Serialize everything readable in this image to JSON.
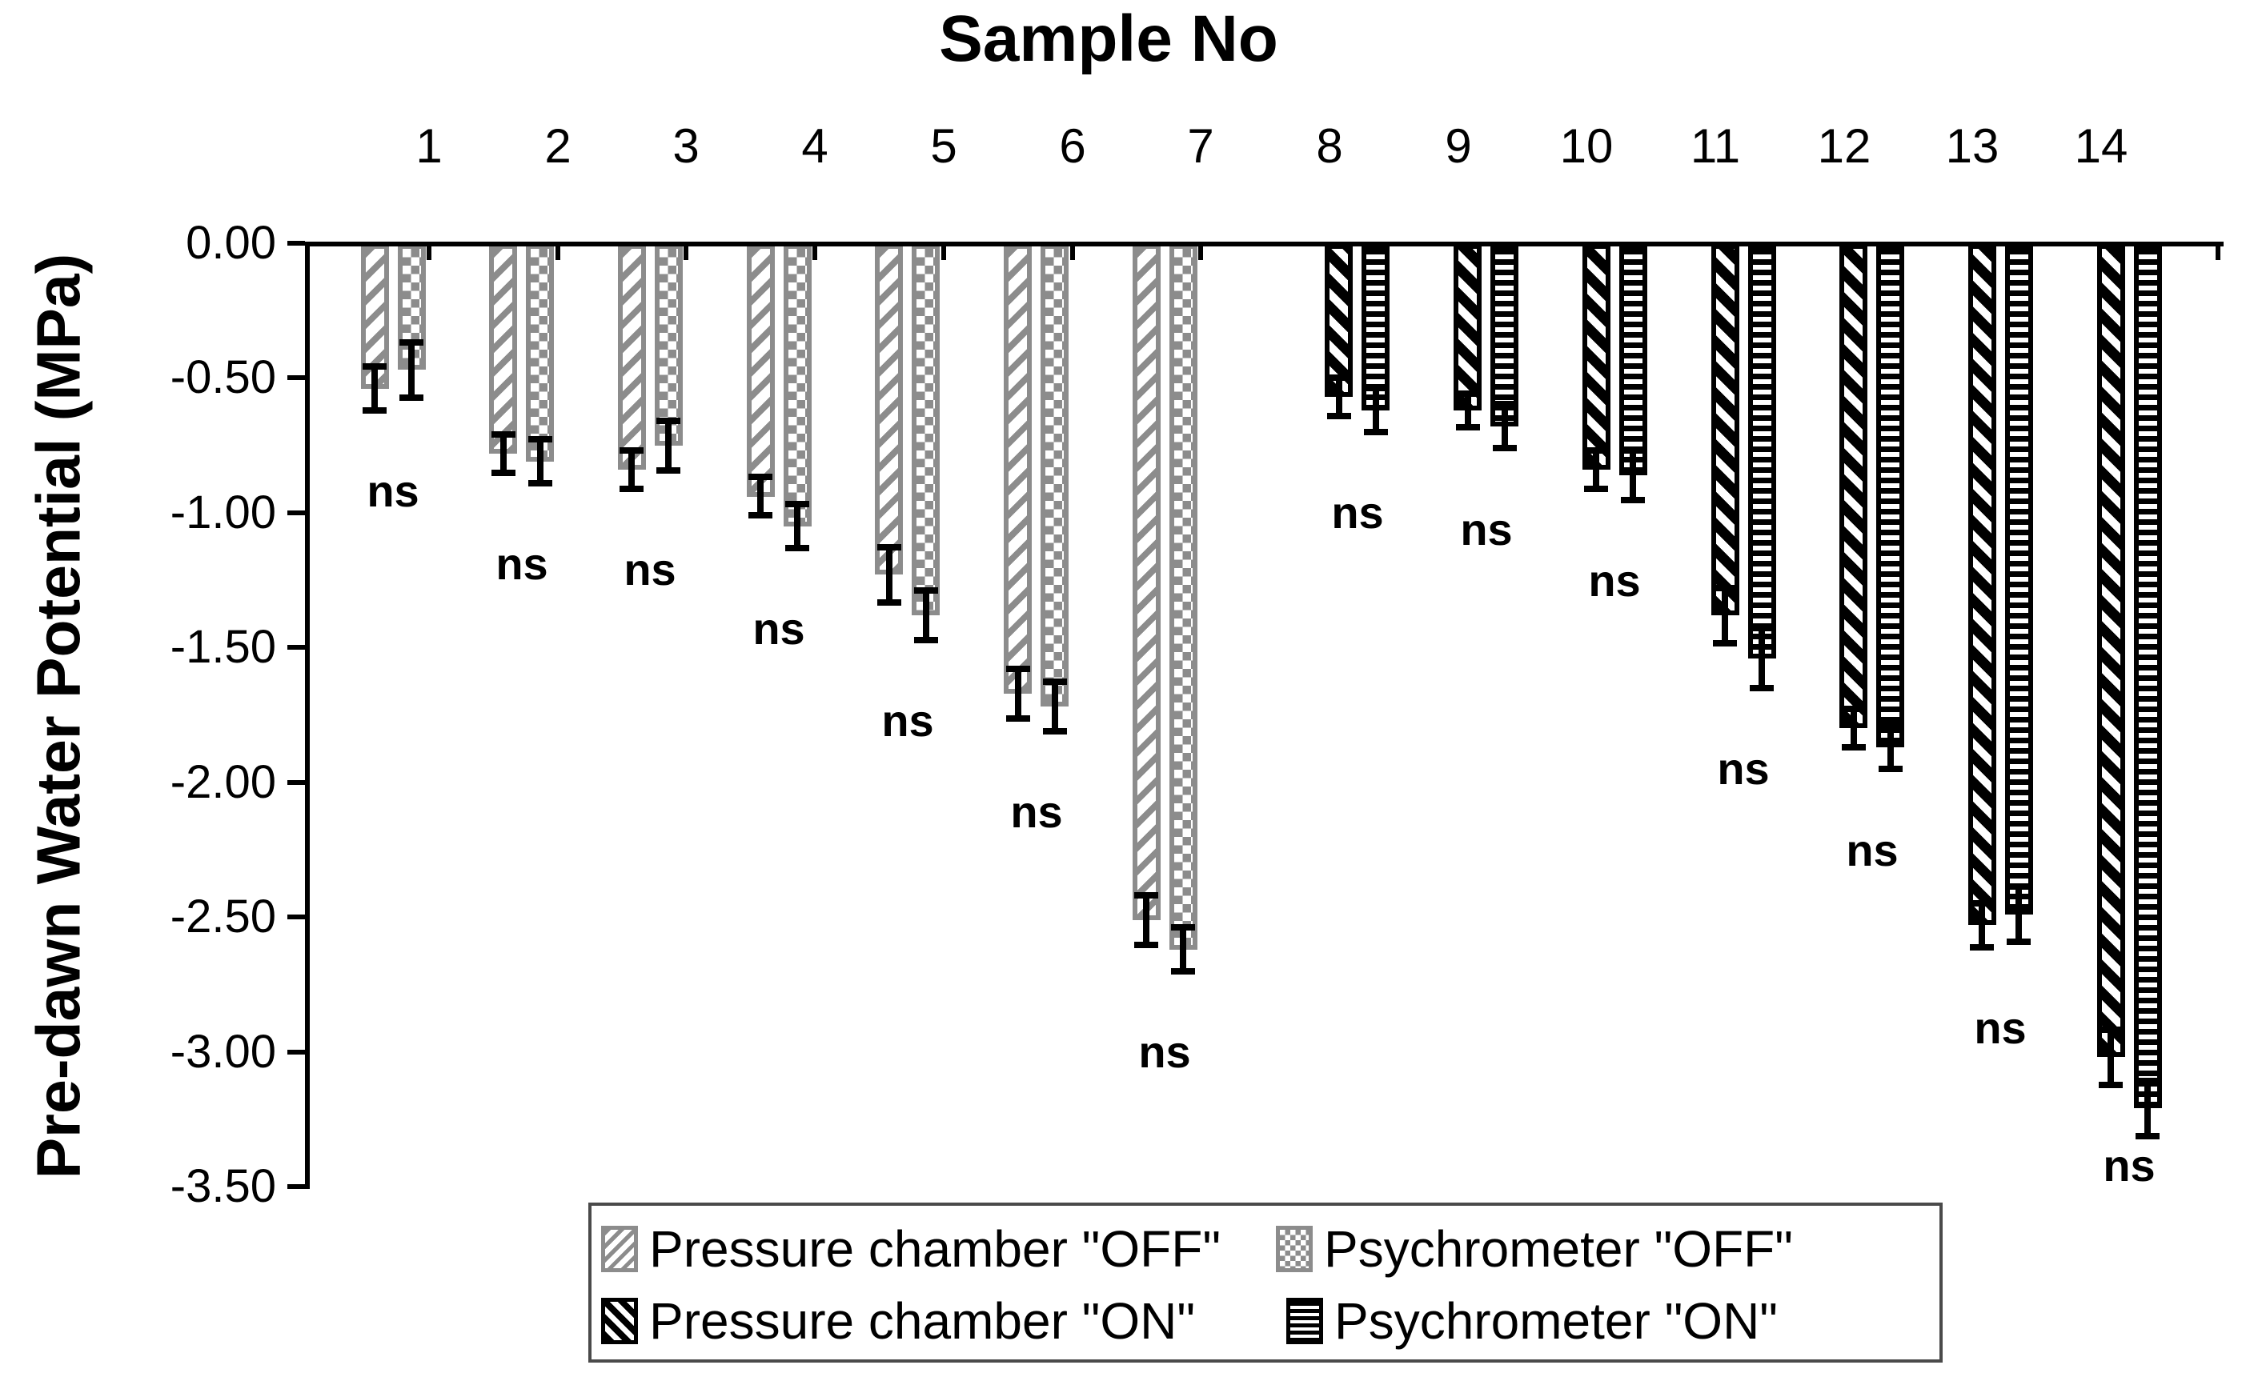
{
  "figure": {
    "title": "Sample No",
    "y_axis_label": "Pre-dawn Water Potential (MPa)",
    "y_tick_labels": [
      "0.00",
      "-0.50",
      "-1.00",
      "-1.50",
      "-2.00",
      "-2.50",
      "-3.00",
      "-3.50"
    ],
    "x_tick_labels": [
      "1",
      "2",
      "3",
      "4",
      "5",
      "6",
      "7",
      "8",
      "9",
      "10",
      "11",
      "12",
      "13",
      "14"
    ],
    "ns_annotation": "ns",
    "colors": {
      "off_series_gray": "#8c8c8c",
      "on_series_black": "#000000",
      "axis": "#000000",
      "background": "#ffffff"
    }
  },
  "legend": {
    "items": [
      {
        "label": "Pressure chamber \"OFF\"",
        "pattern": "diagonal-hatch-up-gray",
        "color": "#8c8c8c"
      },
      {
        "label": "Psychrometer \"OFF\"",
        "pattern": "checkerboard-gray",
        "color": "#8c8c8c"
      },
      {
        "label": "Pressure chamber \"ON\"",
        "pattern": "diagonal-hatch-down-black",
        "color": "#000000"
      },
      {
        "label": "Psychrometer \"ON\"",
        "pattern": "horizontal-stripes-black",
        "color": "#000000"
      }
    ]
  },
  "chart_data": {
    "type": "bar",
    "orientation": "vertical-negative",
    "title": "Sample No",
    "xlabel": "Sample No",
    "ylabel": "Pre-dawn Water Potential (MPa)",
    "ylim": [
      -3.5,
      0
    ],
    "y_tick_step": 0.5,
    "categories": [
      1,
      2,
      3,
      4,
      5,
      6,
      7,
      8,
      9,
      10,
      11,
      12,
      13,
      14
    ],
    "group_gap_after_category": 7,
    "series": [
      {
        "name": "Pressure chamber \"OFF\"",
        "values": [
          -0.54,
          -0.78,
          -0.84,
          -0.94,
          -1.23,
          -1.67,
          -2.51,
          null,
          null,
          null,
          null,
          null,
          null,
          null
        ],
        "errors": [
          0.07,
          0.06,
          0.06,
          0.06,
          0.09,
          0.08,
          0.08,
          null,
          null,
          null,
          null,
          null,
          null,
          null
        ]
      },
      {
        "name": "Psychrometer \"OFF\"",
        "values": [
          -0.47,
          -0.81,
          -0.75,
          -1.05,
          -1.38,
          -1.72,
          -2.62,
          null,
          null,
          null,
          null,
          null,
          null,
          null
        ],
        "errors": [
          0.09,
          0.07,
          0.08,
          0.07,
          0.08,
          0.08,
          0.07,
          null,
          null,
          null,
          null,
          null,
          null,
          null
        ]
      },
      {
        "name": "Pressure chamber \"ON\"",
        "values": [
          null,
          null,
          null,
          null,
          null,
          null,
          null,
          -0.57,
          -0.62,
          -0.84,
          -1.38,
          -1.8,
          -2.53,
          -3.02
        ],
        "errors": [
          null,
          null,
          null,
          null,
          null,
          null,
          null,
          0.06,
          0.05,
          0.06,
          0.09,
          0.06,
          0.07,
          0.09
        ]
      },
      {
        "name": "Psychrometer \"ON\"",
        "values": [
          null,
          null,
          null,
          null,
          null,
          null,
          null,
          -0.62,
          -0.68,
          -0.86,
          -1.54,
          -1.87,
          -2.49,
          -3.21
        ],
        "errors": [
          null,
          null,
          null,
          null,
          null,
          null,
          null,
          0.07,
          0.07,
          0.08,
          0.1,
          0.07,
          0.09,
          0.09
        ]
      }
    ],
    "annotations": [
      "ns",
      "ns",
      "ns",
      "ns",
      "ns",
      "ns",
      "ns",
      "ns",
      "ns",
      "ns",
      "ns",
      "ns",
      "ns",
      "ns"
    ],
    "legend_position": "bottom",
    "grid": false
  }
}
